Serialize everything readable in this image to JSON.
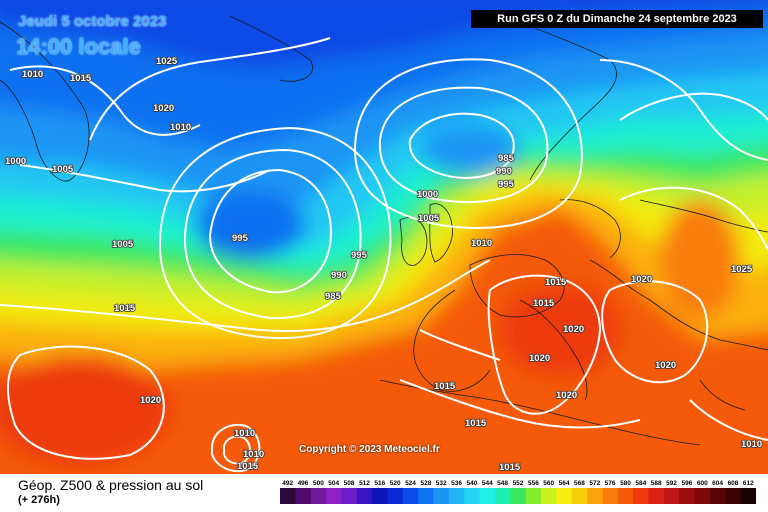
{
  "header": {
    "date": "Jeudi 5 octobre 2023",
    "time": "14:00 locale",
    "run": "Run GFS 0 Z du Dimanche 24 septembre 2023"
  },
  "copyright": "Copyright © 2023 Meteociel.fr",
  "legend": {
    "title": "Géop. Z500 & pression au sol",
    "subtitle": "(+ 276h)",
    "scale_labels": [
      "492",
      "496",
      "500",
      "504",
      "508",
      "512",
      "516",
      "520",
      "524",
      "528",
      "532",
      "536",
      "540",
      "544",
      "548",
      "552",
      "556",
      "560",
      "564",
      "568",
      "572",
      "576",
      "580",
      "584",
      "588",
      "592",
      "596",
      "600",
      "604",
      "608",
      "612"
    ],
    "scale_colors": [
      "#2a0a3a",
      "#4d0a6b",
      "#701a9a",
      "#8d21c7",
      "#6c1cc9",
      "#3815c4",
      "#0f14b8",
      "#0a28d6",
      "#0a4ae6",
      "#0f72f0",
      "#1a95f5",
      "#23b4f5",
      "#22d4f1",
      "#1ef0e6",
      "#1ef0b4",
      "#3ae85f",
      "#86ec2c",
      "#c9f21d",
      "#f7f010",
      "#f9cd0c",
      "#fba50a",
      "#f97c0a",
      "#f45a0a",
      "#ee3a0d",
      "#d92213",
      "#bd1414",
      "#9c0c0c",
      "#7c0808",
      "#5a0404",
      "#3a0202",
      "#1a0000"
    ]
  },
  "isobars": [
    "1025",
    "1010",
    "1015",
    "1020",
    "1010",
    "1000",
    "1005",
    "995",
    "1005",
    "1015",
    "990",
    "995",
    "985",
    "1020",
    "1010",
    "1010",
    "1015",
    "985",
    "990",
    "995",
    "1000",
    "1005",
    "1010",
    "1015",
    "1015",
    "1020",
    "1020",
    "1020",
    "1020",
    "1025",
    "1020",
    "1015",
    "1015",
    "1010",
    "1015"
  ]
}
